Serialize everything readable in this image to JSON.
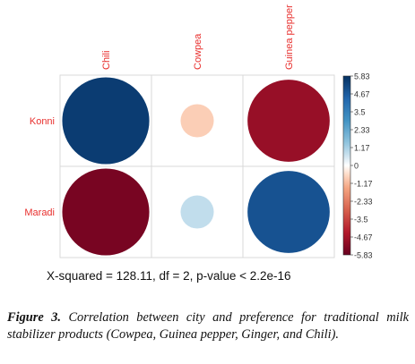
{
  "chart_data": {
    "type": "heatmap",
    "columns": [
      "Chili",
      "Cowpea",
      "Guinea pepper"
    ],
    "rows": [
      "Konni",
      "Maradi"
    ],
    "values": [
      [
        5.5,
        -0.8,
        -4.9
      ],
      [
        -5.5,
        0.8,
        4.9
      ]
    ],
    "colorbar_ticks": [
      "5.83",
      "4.67",
      "3.5",
      "2.33",
      "1.17",
      "0",
      "-1.17",
      "-2.33",
      "-3.5",
      "-4.67",
      "-5.83"
    ],
    "colorbar_range": [
      -5.83,
      5.83
    ],
    "colors": {
      "positive": "#053061",
      "negative": "#67001F",
      "neutral": "#FFFFFF",
      "label_red": "#E8302E"
    }
  },
  "stat_text": "X-squared = 128.11, df = 2, p-value < 2.2e-16",
  "caption": {
    "label": "Figure 3.",
    "text": " Correlation between city and preference for traditional milk stabilizer products (Cowpea, Guinea pepper, Ginger, and Chili)."
  }
}
